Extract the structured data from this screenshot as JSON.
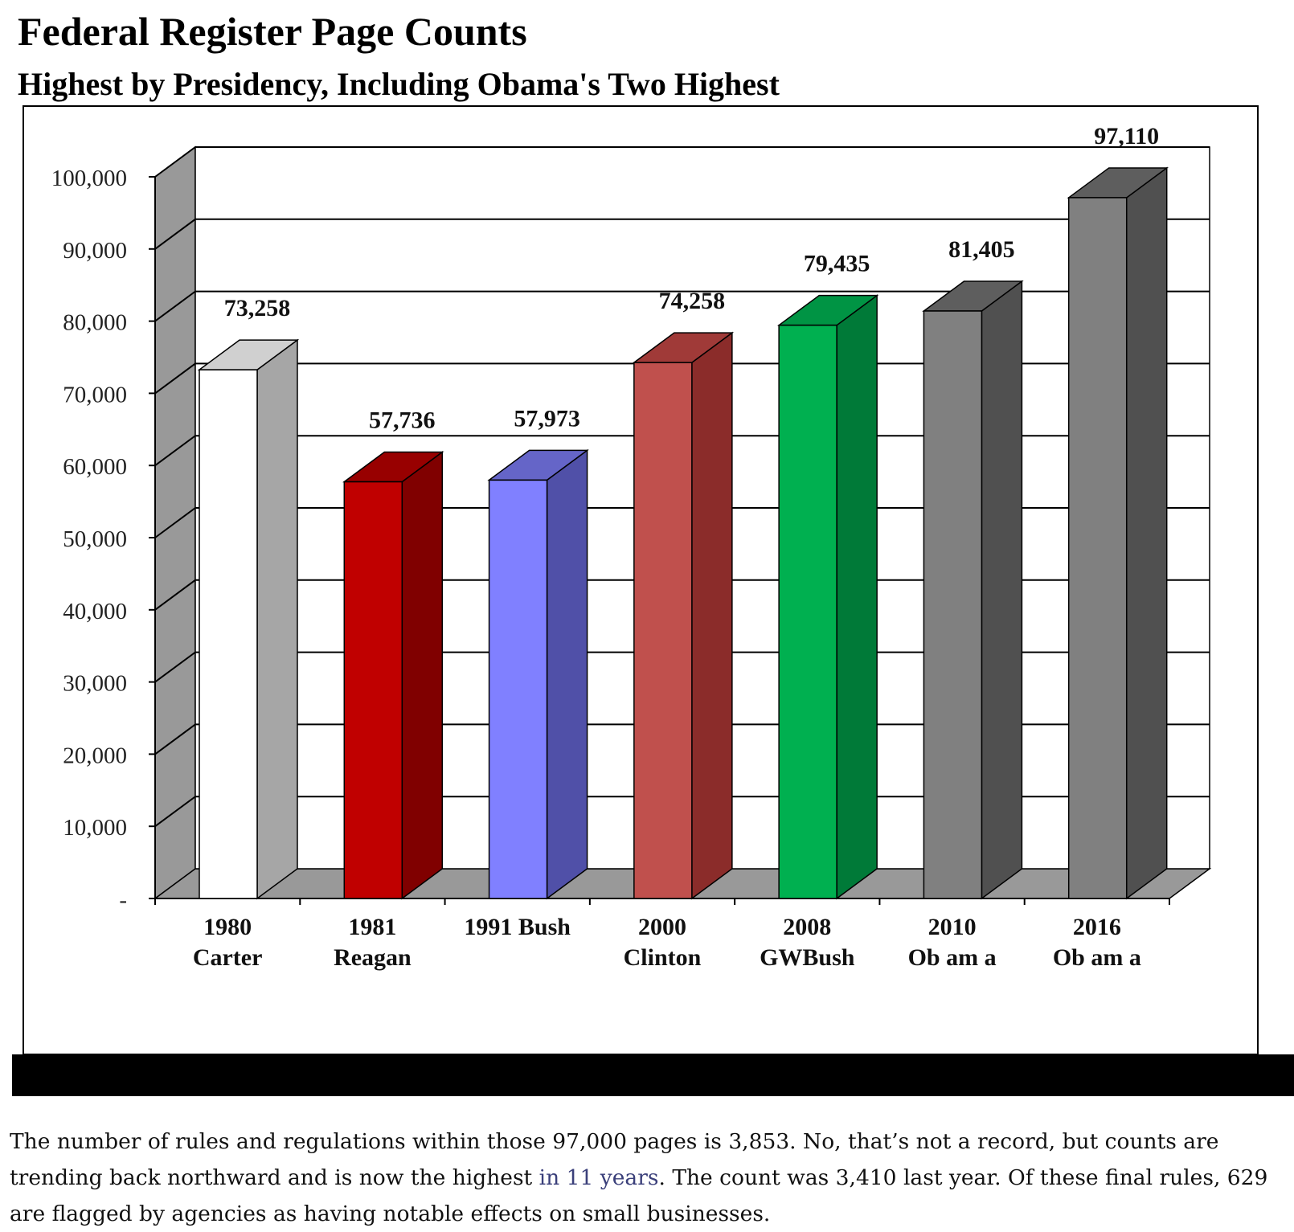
{
  "chart_data": {
    "type": "bar",
    "title": "Federal Register Page Counts",
    "subtitle": "Highest by Presidency, Including Obama's Two Highest",
    "categories": [
      [
        "1980",
        "Carter"
      ],
      [
        "1981",
        "Reagan"
      ],
      [
        "1991 Bush"
      ],
      [
        "2000",
        "Clinton"
      ],
      [
        "2008",
        "GWBush"
      ],
      [
        "2010",
        "Ob am a"
      ],
      [
        "2016",
        "Ob am a"
      ]
    ],
    "values": [
      73258,
      57736,
      57973,
      74258,
      79435,
      81405,
      97110
    ],
    "data_labels": [
      "73,258",
      "57,736",
      "57,973",
      "74,258",
      "79,435",
      "81,405",
      "97,110"
    ],
    "y_ticks": [
      0,
      10000,
      20000,
      30000,
      40000,
      50000,
      60000,
      70000,
      80000,
      90000,
      100000
    ],
    "y_tick_labels": [
      "-",
      "10,000",
      "20,000",
      "30,000",
      "40,000",
      "50,000",
      "60,000",
      "70,000",
      "80,000",
      "90,000",
      "100,000"
    ],
    "ylim": [
      0,
      100000
    ],
    "xlabel": "",
    "ylabel": "",
    "grid": true,
    "legend": "none",
    "colors": {
      "front": [
        "#ffffff",
        "#c00000",
        "#8080ff",
        "#c0504d",
        "#00b050",
        "#808080",
        "#808080"
      ],
      "side": [
        "#a6a6a6",
        "#800000",
        "#5050a8",
        "#8b2c2a",
        "#007a38",
        "#505050",
        "#505050"
      ],
      "top": [
        "#d0d0d0",
        "#980000",
        "#6565c8",
        "#a03a38",
        "#009444",
        "#5e5e5e",
        "#5e5e5e"
      ],
      "wall": "#999999",
      "floor": "#999999"
    }
  },
  "caption": {
    "part1": "The number of rules and regulations within those 97,000 pages is 3,853. No, that’s not a record, but counts are trending back northward and is now the highest ",
    "link": "in 11 years",
    "part2": ". The count was 3,410 last year.  Of these final rules, 629 are flagged by agencies as having notable effects on small businesses."
  }
}
